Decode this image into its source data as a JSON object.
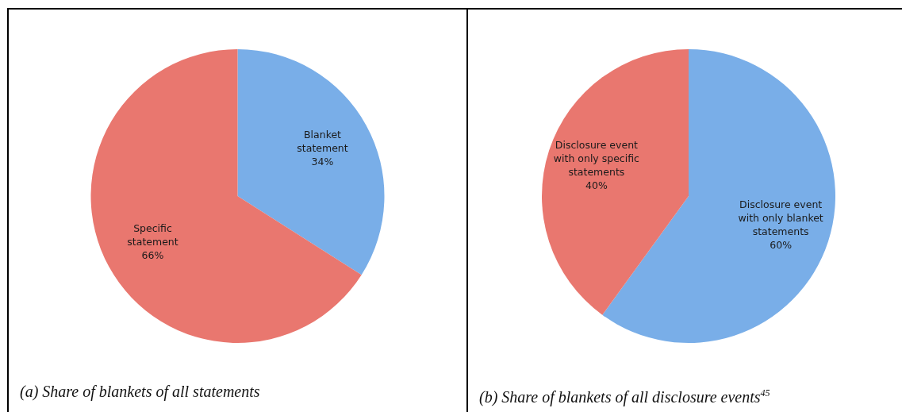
{
  "chart_data": [
    {
      "type": "pie",
      "title": "(a) Share of blankets of all statements",
      "categories": [
        "Blanket statement",
        "Specific statement"
      ],
      "values": [
        34,
        66
      ],
      "colors": [
        "#79aee8",
        "#e9776f"
      ],
      "value_labels": [
        "34%",
        "66%"
      ],
      "legend": false
    },
    {
      "type": "pie",
      "title": "(b) Share of blankets of all disclosure events$^{45}$",
      "categories": [
        "Disclosure event with only blanket statements",
        "Disclosure event with only specific statements"
      ],
      "values": [
        60,
        40
      ],
      "colors": [
        "#79aee8",
        "#e9776f"
      ],
      "value_labels": [
        "60%",
        "40%"
      ],
      "legend": false
    }
  ]
}
